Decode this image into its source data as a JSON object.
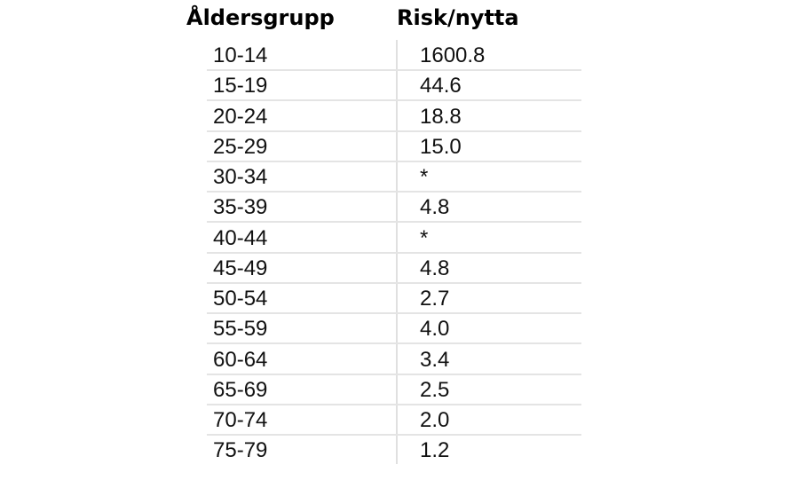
{
  "table": {
    "header": [
      "Åldersgrupp",
      "Risk/nytta"
    ],
    "rows": [
      [
        "10-14",
        "1600.8"
      ],
      [
        "15-19",
        "44.6"
      ],
      [
        "20-24",
        "18.8"
      ],
      [
        "25-29",
        "15.0"
      ],
      [
        "30-34",
        "*"
      ],
      [
        "35-39",
        "4.8"
      ],
      [
        "40-44",
        "*"
      ],
      [
        "45-49",
        "4.8"
      ],
      [
        "50-54",
        "2.7"
      ],
      [
        "55-59",
        "4.0"
      ],
      [
        "60-64",
        "3.4"
      ],
      [
        "65-69",
        "2.5"
      ],
      [
        "70-74",
        "2.0"
      ],
      [
        "75-79",
        "1.2"
      ]
    ]
  }
}
